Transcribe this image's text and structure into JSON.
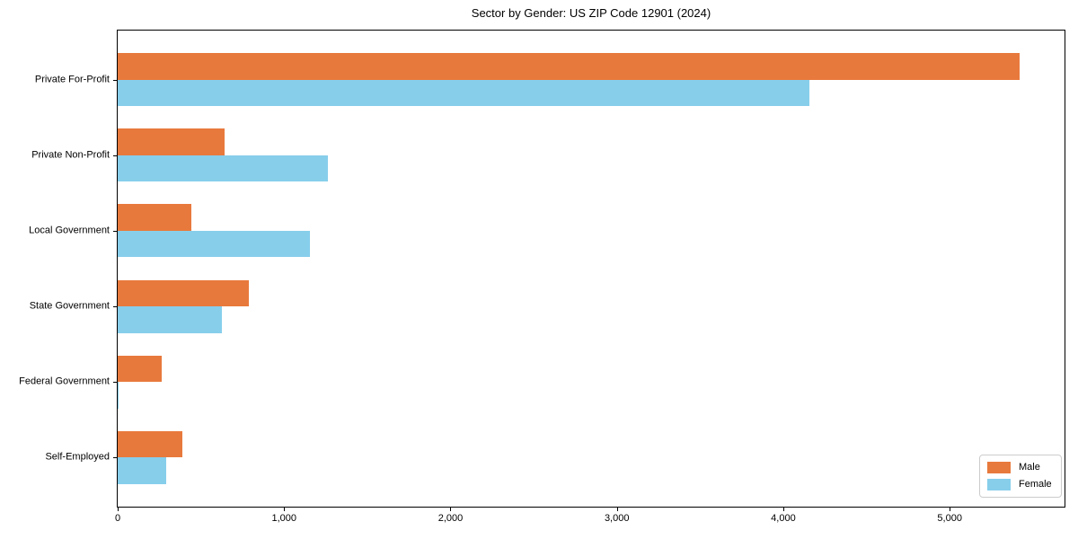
{
  "chart_data": {
    "type": "bar",
    "orientation": "horizontal",
    "title": "Sector by Gender: US ZIP Code 12901 (2024)",
    "categories": [
      "Private For-Profit",
      "Private Non-Profit",
      "Local Government",
      "State Government",
      "Federal Government",
      "Self-Employed"
    ],
    "series": [
      {
        "name": "Male",
        "color": "#E8793C",
        "values": [
          5420,
          640,
          445,
          790,
          265,
          390
        ]
      },
      {
        "name": "Female",
        "color": "#87CEEB",
        "values": [
          4155,
          1265,
          1155,
          625,
          5,
          290
        ]
      }
    ],
    "xlabel": "",
    "ylabel": "",
    "xlim": [
      0,
      5690
    ],
    "xticks": [
      0,
      1000,
      2000,
      3000,
      4000,
      5000
    ],
    "xtick_labels": [
      "0",
      "1,000",
      "2,000",
      "3,000",
      "4,000",
      "5,000"
    ],
    "legend_position": "lower right",
    "grid": false,
    "bar_group_padding": 0.65,
    "bar_width_fraction": 0.35
  }
}
